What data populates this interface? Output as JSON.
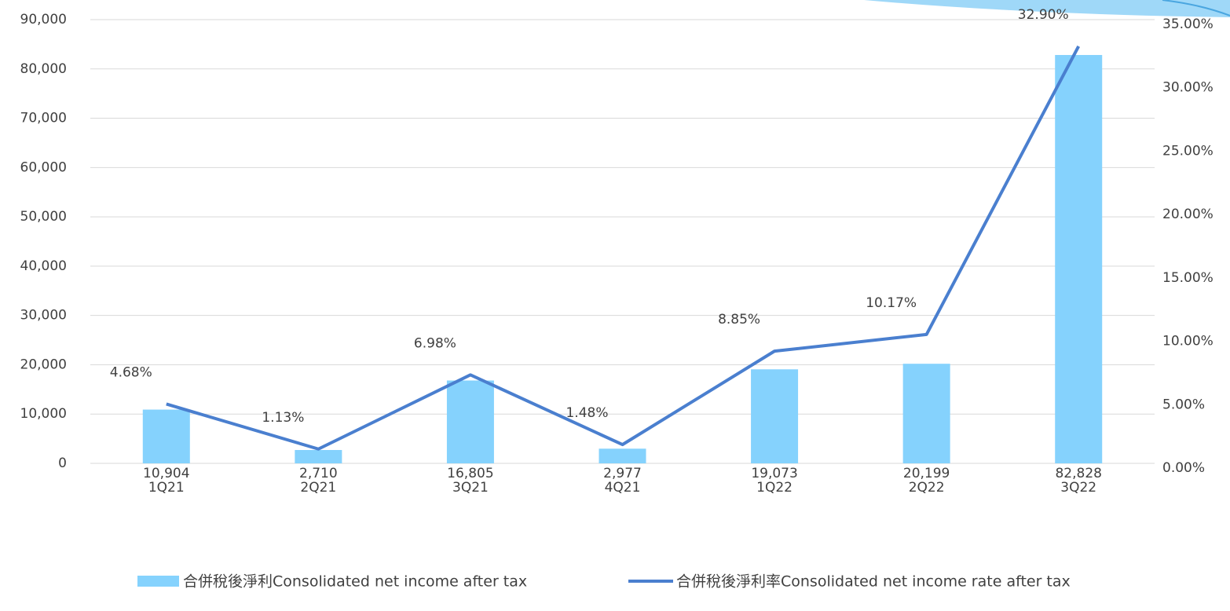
{
  "chart_data": {
    "type": "bar-line",
    "categories": [
      "1Q21",
      "2Q21",
      "3Q21",
      "4Q21",
      "1Q22",
      "2Q22",
      "3Q22"
    ],
    "series": [
      {
        "name": "合併稅後淨利Consolidated net income after tax",
        "type": "bar",
        "color": "#85d2fd",
        "axis": "y",
        "values": [
          10904,
          2710,
          16805,
          2977,
          19073,
          20199,
          82828
        ],
        "value_labels": [
          "10,904",
          "2,710",
          "16,805",
          "2,977",
          "19,073",
          "20,199",
          "82,828"
        ]
      },
      {
        "name": "合併稅後淨利率Consolidated net income rate after tax",
        "type": "line",
        "color": "#4a7fcf",
        "axis": "y2",
        "values": [
          4.68,
          1.13,
          6.98,
          1.48,
          8.85,
          10.17,
          32.9
        ],
        "value_labels": [
          "4.68%",
          "1.13%",
          "6.98%",
          "1.48%",
          "8.85%",
          "10.17%",
          "32.90%"
        ]
      }
    ],
    "ylim": [
      0,
      90000
    ],
    "yticks": [
      0,
      {
        "value": 10000,
        "label": "10,000"
      },
      {
        "value": 20000,
        "label": "20,000"
      },
      {
        "value": 30000,
        "label": "30,000"
      },
      {
        "value": 40000,
        "label": "40,000"
      },
      {
        "value": 50000,
        "label": "50,000"
      },
      {
        "value": 60000,
        "label": "60,000"
      },
      {
        "value": 70000,
        "label": "70,000"
      },
      {
        "value": 80000,
        "label": "80,000"
      },
      {
        "value": 90000,
        "label": "90,000"
      }
    ],
    "y2lim": [
      0,
      35
    ],
    "y2ticks": [
      {
        "value": 0,
        "label": "0.00%"
      },
      {
        "value": 5,
        "label": "5.00%"
      },
      {
        "value": 10,
        "label": "10.00%"
      },
      {
        "value": 15,
        "label": "15.00%"
      },
      {
        "value": 20,
        "label": "20.00%"
      },
      {
        "value": 25,
        "label": "25.00%"
      },
      {
        "value": 30,
        "label": "30.00%"
      },
      {
        "value": 35,
        "label": "35.00%"
      }
    ],
    "grid": true,
    "legend": "bottom"
  }
}
